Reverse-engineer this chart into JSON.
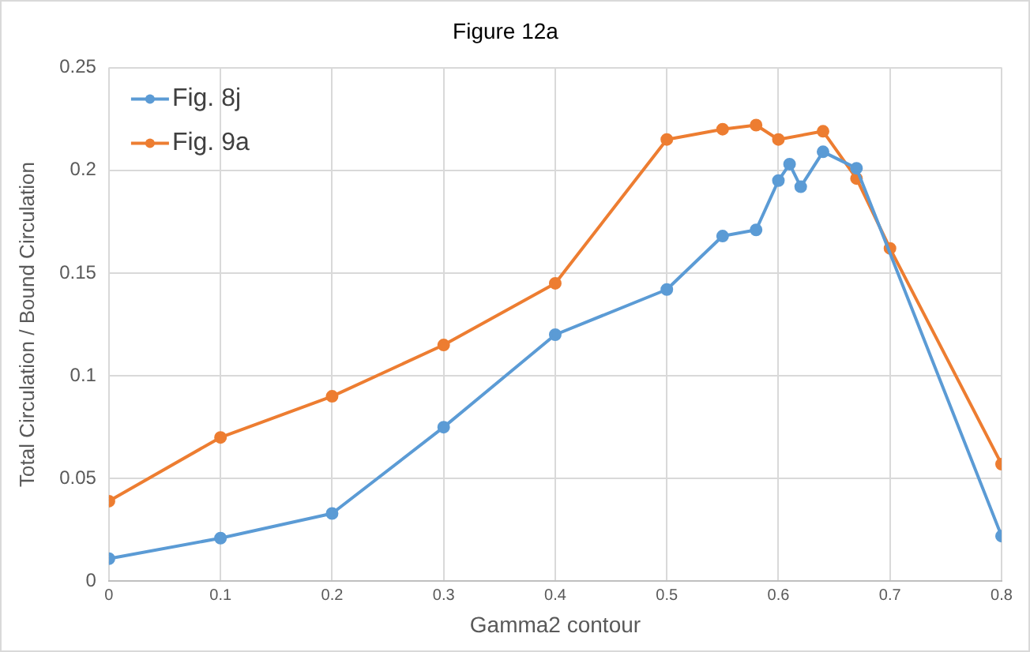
{
  "chart_data": {
    "type": "line",
    "title": "Figure 12a",
    "xlabel": "Gamma2 contour",
    "ylabel": "Total Circulation / Bound Circulation",
    "xlim": [
      0,
      0.8
    ],
    "xticks": [
      0,
      0.1,
      0.2,
      0.3,
      0.4,
      0.5,
      0.6,
      0.7,
      0.8
    ],
    "ylim": [
      0,
      0.25
    ],
    "yticks": [
      0,
      0.05,
      0.1,
      0.15,
      0.2,
      0.25
    ],
    "grid": true,
    "legend": "top left",
    "marker": "circle",
    "line_style": "solid",
    "series": [
      {
        "name": "Fig. 8j",
        "color": "#5b9bd5",
        "x": [
          0,
          0.1,
          0.2,
          0.3,
          0.4,
          0.5,
          0.55,
          0.58,
          0.6,
          0.61,
          0.62,
          0.64,
          0.67,
          0.8
        ],
        "values": [
          0.011,
          0.021,
          0.033,
          0.075,
          0.12,
          0.142,
          0.168,
          0.171,
          0.195,
          0.203,
          0.192,
          0.209,
          0.201,
          0.022
        ]
      },
      {
        "name": "Fig. 9a",
        "color": "#ed7d31",
        "x": [
          0,
          0.1,
          0.2,
          0.3,
          0.4,
          0.5,
          0.55,
          0.58,
          0.6,
          0.64,
          0.67,
          0.7,
          0.8
        ],
        "values": [
          0.039,
          0.07,
          0.09,
          0.115,
          0.145,
          0.215,
          0.22,
          0.222,
          0.215,
          0.219,
          0.196,
          0.162,
          0.057
        ]
      }
    ]
  }
}
